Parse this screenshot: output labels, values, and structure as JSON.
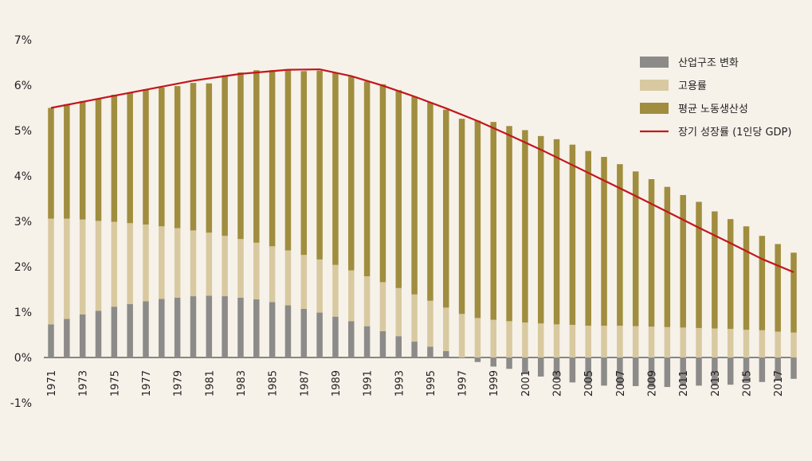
{
  "chart_data": {
    "type": "bar",
    "stacked": true,
    "title": "",
    "xlabel": "",
    "ylabel": "",
    "ylim": [
      -1,
      7
    ],
    "y_tick_labels": [
      "-1%",
      "0%",
      "1%",
      "2%",
      "3%",
      "4%",
      "5%",
      "6%",
      "7%"
    ],
    "y_ticks": [
      -1,
      0,
      1,
      2,
      3,
      4,
      5,
      6,
      7
    ],
    "grid": false,
    "legend_position": "top-right",
    "x": [
      1971,
      1972,
      1973,
      1974,
      1975,
      1976,
      1977,
      1978,
      1979,
      1980,
      1981,
      1982,
      1983,
      1984,
      1985,
      1986,
      1987,
      1988,
      1989,
      1990,
      1991,
      1992,
      1993,
      1994,
      1995,
      1996,
      1997,
      1998,
      1999,
      2000,
      2001,
      2002,
      2003,
      2004,
      2005,
      2006,
      2007,
      2008,
      2009,
      2010,
      2011,
      2012,
      2013,
      2014,
      2015,
      2016,
      2017,
      2018
    ],
    "x_tick_labels": [
      "1971",
      "1973",
      "1975",
      "1977",
      "1979",
      "1981",
      "1983",
      "1985",
      "1987",
      "1989",
      "1991",
      "1993",
      "1995",
      "1997",
      "1999",
      "2001",
      "2003",
      "2005",
      "2007",
      "2009",
      "2011",
      "2013",
      "2015",
      "2017"
    ],
    "series": [
      {
        "name": "산업구조 변화",
        "type": "bar",
        "color": "#8c8b89",
        "values": [
          0.73,
          0.85,
          0.95,
          1.03,
          1.12,
          1.18,
          1.24,
          1.29,
          1.32,
          1.35,
          1.36,
          1.35,
          1.32,
          1.28,
          1.22,
          1.15,
          1.07,
          0.99,
          0.9,
          0.8,
          0.69,
          0.58,
          0.47,
          0.35,
          0.24,
          0.14,
          0,
          -0.1,
          -0.2,
          -0.25,
          -0.35,
          -0.42,
          -0.49,
          -0.55,
          -0.58,
          -0.62,
          -0.62,
          -0.63,
          -0.65,
          -0.65,
          -0.63,
          -0.62,
          -0.62,
          -0.6,
          -0.56,
          -0.54,
          -0.51,
          -0.47
        ]
      },
      {
        "name": "고용률",
        "type": "bar",
        "color": "#d8c9a0",
        "values": [
          2.33,
          2.21,
          2.09,
          1.98,
          1.87,
          1.78,
          1.69,
          1.6,
          1.53,
          1.45,
          1.39,
          1.33,
          1.29,
          1.25,
          1.23,
          1.21,
          1.19,
          1.17,
          1.14,
          1.12,
          1.1,
          1.08,
          1.06,
          1.04,
          1.01,
          0.96,
          0.96,
          0.87,
          0.83,
          0.8,
          0.77,
          0.75,
          0.73,
          0.72,
          0.7,
          0.7,
          0.7,
          0.69,
          0.68,
          0.67,
          0.66,
          0.65,
          0.64,
          0.63,
          0.61,
          0.6,
          0.57,
          0.55
        ]
      },
      {
        "name": "평균 노동생산성",
        "type": "bar",
        "color": "#a08d3e",
        "values": [
          2.44,
          2.52,
          2.61,
          2.7,
          2.8,
          2.88,
          2.98,
          3.06,
          3.13,
          3.25,
          3.29,
          3.54,
          3.67,
          3.8,
          3.88,
          3.97,
          4.05,
          4.16,
          4.23,
          4.27,
          4.29,
          4.36,
          4.36,
          4.36,
          4.37,
          4.36,
          4.3,
          4.35,
          4.36,
          4.3,
          4.24,
          4.13,
          4.08,
          3.97,
          3.85,
          3.72,
          3.56,
          3.41,
          3.25,
          3.09,
          2.92,
          2.78,
          2.58,
          2.42,
          2.28,
          2.08,
          1.93,
          1.76
        ]
      },
      {
        "name": "장기 성장률 (1인당 GDP)",
        "type": "line",
        "color": "#c4161c",
        "points": [
          [
            1971,
            5.5
          ],
          [
            1974,
            5.7
          ],
          [
            1977,
            5.9
          ],
          [
            1980,
            6.1
          ],
          [
            1983,
            6.25
          ],
          [
            1986,
            6.34
          ],
          [
            1988,
            6.35
          ],
          [
            1990,
            6.2
          ],
          [
            1992,
            5.99
          ],
          [
            1994,
            5.75
          ],
          [
            1996,
            5.49
          ],
          [
            1998,
            5.21
          ],
          [
            2000,
            4.9
          ],
          [
            2002,
            4.58
          ],
          [
            2004,
            4.24
          ],
          [
            2006,
            3.9
          ],
          [
            2008,
            3.56
          ],
          [
            2010,
            3.21
          ],
          [
            2012,
            2.86
          ],
          [
            2014,
            2.52
          ],
          [
            2016,
            2.17
          ],
          [
            2018,
            1.88
          ]
        ]
      }
    ]
  }
}
